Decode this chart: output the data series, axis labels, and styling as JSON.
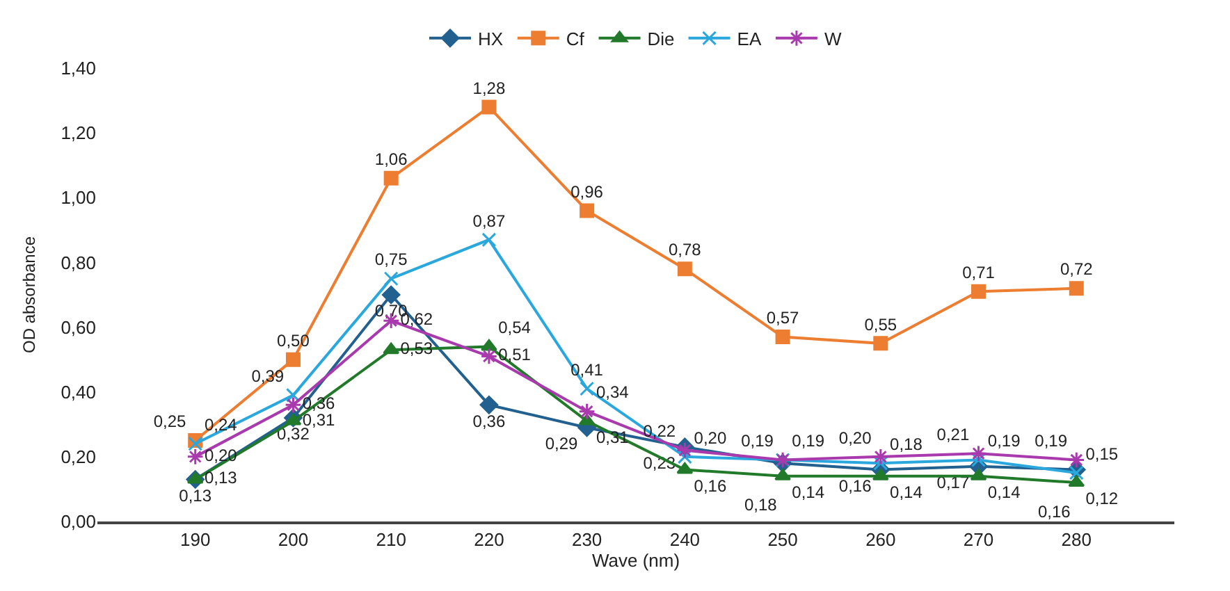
{
  "chart_data": {
    "type": "line",
    "ylabel": "OD absorbance",
    "xlabel": "Wave (nm)",
    "categories": [
      "190",
      "200",
      "210",
      "220",
      "230",
      "240",
      "250",
      "260",
      "270",
      "280"
    ],
    "ylim": [
      0,
      1.4
    ],
    "yticks": [
      {
        "value": 0,
        "label": "0,00"
      },
      {
        "value": 0.2,
        "label": "0,20"
      },
      {
        "value": 0.4,
        "label": "0,40"
      },
      {
        "value": 0.6,
        "label": "0,60"
      },
      {
        "value": 0.8,
        "label": "0,80"
      },
      {
        "value": 1.0,
        "label": "1,00"
      },
      {
        "value": 1.2,
        "label": "1,20"
      },
      {
        "value": 1.4,
        "label": "1,40"
      }
    ],
    "grid": false,
    "legend": "top",
    "line_style": "solid",
    "series": [
      {
        "name": "HX",
        "color": "#22618f",
        "marker": "diamond",
        "values": [
          0.13,
          0.32,
          0.7,
          0.36,
          0.29,
          0.23,
          0.18,
          0.16,
          0.17,
          0.16
        ],
        "value_labels": [
          "0,13",
          "0,32",
          "0,70",
          "0,36",
          "0,29",
          "0,23",
          "0,18",
          "0,16",
          "0,17",
          "0,16"
        ]
      },
      {
        "name": "Cf",
        "color": "#ed7d31",
        "marker": "square",
        "values": [
          0.25,
          0.5,
          1.06,
          1.28,
          0.96,
          0.78,
          0.57,
          0.55,
          0.71,
          0.72
        ],
        "value_labels": [
          "0,25",
          "0,50",
          "1,06",
          "1,28",
          "0,96",
          "0,78",
          "0,57",
          "0,55",
          "0,71",
          "0,72"
        ]
      },
      {
        "name": "Die",
        "color": "#217a2a",
        "marker": "triangle",
        "values": [
          0.13,
          0.31,
          0.53,
          0.54,
          0.31,
          0.16,
          0.14,
          0.14,
          0.14,
          0.12
        ],
        "value_labels": [
          "0,13",
          "0,31",
          "0,53",
          "0,54",
          "0,31",
          "0,16",
          "0,14",
          "0,14",
          "0,14",
          "0,12"
        ]
      },
      {
        "name": "EA",
        "color": "#2aa7dd",
        "marker": "cross",
        "values": [
          0.24,
          0.39,
          0.75,
          0.87,
          0.41,
          0.2,
          0.19,
          0.18,
          0.19,
          0.15
        ],
        "value_labels": [
          "0,24",
          "0,39",
          "0,75",
          "0,87",
          "0,41",
          "0,20",
          "0,19",
          "0,18",
          "0,19",
          "0,15"
        ]
      },
      {
        "name": "W",
        "color": "#a93aae",
        "marker": "cross",
        "values": [
          0.2,
          0.36,
          0.62,
          0.51,
          0.34,
          0.22,
          0.19,
          0.2,
          0.21,
          0.19
        ],
        "value_labels": [
          "0,20",
          "0,36",
          "0,62",
          "0,51",
          "0,34",
          "0,22",
          "0,19",
          "0,20",
          "0,21",
          "0,19"
        ]
      }
    ]
  }
}
